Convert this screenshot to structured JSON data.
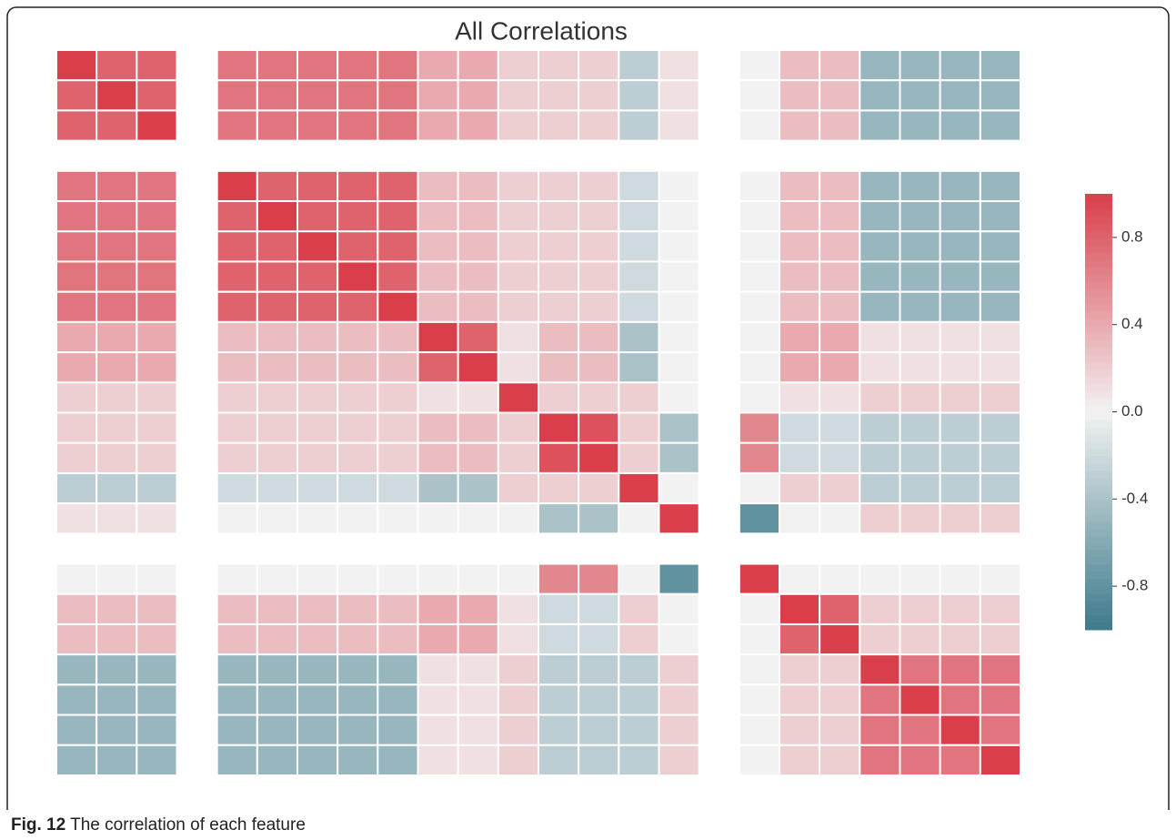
{
  "chart_data": {
    "type": "heatmap",
    "title": "All Correlations",
    "categories": [
      null,
      null,
      null,
      null,
      null,
      null,
      null,
      null,
      null,
      null,
      null,
      null,
      null,
      null,
      null,
      null,
      null,
      null,
      null,
      null,
      null,
      null,
      null,
      null
    ],
    "values": [
      [
        1,
        0.8,
        0.8,
        null,
        0.7,
        0.7,
        0.7,
        0.7,
        0.7,
        0.4,
        0.4,
        0.2,
        0.2,
        0.2,
        -0.3,
        0.1,
        null,
        0,
        0.3,
        0.3,
        -0.5,
        -0.5,
        -0.5,
        -0.5
      ],
      [
        0.8,
        1,
        0.8,
        null,
        0.7,
        0.7,
        0.7,
        0.7,
        0.7,
        0.4,
        0.4,
        0.2,
        0.2,
        0.2,
        -0.3,
        0.1,
        null,
        0,
        0.3,
        0.3,
        -0.5,
        -0.5,
        -0.5,
        -0.5
      ],
      [
        0.8,
        0.8,
        1,
        null,
        0.7,
        0.7,
        0.7,
        0.7,
        0.7,
        0.4,
        0.4,
        0.2,
        0.2,
        0.2,
        -0.3,
        0.1,
        null,
        0,
        0.3,
        0.3,
        -0.5,
        -0.5,
        -0.5,
        -0.5
      ],
      [
        null,
        null,
        null,
        null,
        null,
        null,
        null,
        null,
        null,
        null,
        null,
        null,
        null,
        null,
        null,
        null,
        null,
        null,
        null,
        null,
        null,
        null,
        null,
        null
      ],
      [
        0.7,
        0.7,
        0.7,
        null,
        1,
        0.8,
        0.8,
        0.8,
        0.8,
        0.3,
        0.3,
        0.2,
        0.2,
        0.2,
        -0.2,
        0,
        null,
        0,
        0.3,
        0.3,
        -0.5,
        -0.5,
        -0.5,
        -0.5
      ],
      [
        0.7,
        0.7,
        0.7,
        null,
        0.8,
        1,
        0.8,
        0.8,
        0.8,
        0.3,
        0.3,
        0.2,
        0.2,
        0.2,
        -0.2,
        0,
        null,
        0,
        0.3,
        0.3,
        -0.5,
        -0.5,
        -0.5,
        -0.5
      ],
      [
        0.7,
        0.7,
        0.7,
        null,
        0.8,
        0.8,
        1,
        0.8,
        0.8,
        0.3,
        0.3,
        0.2,
        0.2,
        0.2,
        -0.2,
        0,
        null,
        0,
        0.3,
        0.3,
        -0.5,
        -0.5,
        -0.5,
        -0.5
      ],
      [
        0.7,
        0.7,
        0.7,
        null,
        0.8,
        0.8,
        0.8,
        1,
        0.8,
        0.3,
        0.3,
        0.2,
        0.2,
        0.2,
        -0.2,
        0,
        null,
        0,
        0.3,
        0.3,
        -0.5,
        -0.5,
        -0.5,
        -0.5
      ],
      [
        0.7,
        0.7,
        0.7,
        null,
        0.8,
        0.8,
        0.8,
        0.8,
        1,
        0.3,
        0.3,
        0.2,
        0.2,
        0.2,
        -0.2,
        0,
        null,
        0,
        0.3,
        0.3,
        -0.5,
        -0.5,
        -0.5,
        -0.5
      ],
      [
        0.4,
        0.4,
        0.4,
        null,
        0.3,
        0.3,
        0.3,
        0.3,
        0.3,
        1,
        0.8,
        0.1,
        0.3,
        0.3,
        -0.4,
        0,
        null,
        0,
        0.4,
        0.4,
        0.1,
        0.1,
        0.1,
        0.1
      ],
      [
        0.4,
        0.4,
        0.4,
        null,
        0.3,
        0.3,
        0.3,
        0.3,
        0.3,
        0.8,
        1,
        0.1,
        0.3,
        0.3,
        -0.4,
        0,
        null,
        0,
        0.4,
        0.4,
        0.1,
        0.1,
        0.1,
        0.1
      ],
      [
        0.2,
        0.2,
        0.2,
        null,
        0.2,
        0.2,
        0.2,
        0.2,
        0.2,
        0.1,
        0.1,
        1,
        0.2,
        0.2,
        0.2,
        0,
        null,
        0,
        0.1,
        0.1,
        0.2,
        0.2,
        0.2,
        0.2
      ],
      [
        0.2,
        0.2,
        0.2,
        null,
        0.2,
        0.2,
        0.2,
        0.2,
        0.2,
        0.3,
        0.3,
        0.2,
        1,
        0.9,
        0.2,
        -0.4,
        null,
        0.6,
        -0.2,
        -0.2,
        -0.3,
        -0.3,
        -0.3,
        -0.3
      ],
      [
        0.2,
        0.2,
        0.2,
        null,
        0.2,
        0.2,
        0.2,
        0.2,
        0.2,
        0.3,
        0.3,
        0.2,
        0.9,
        1,
        0.2,
        -0.4,
        null,
        0.6,
        -0.2,
        -0.2,
        -0.3,
        -0.3,
        -0.3,
        -0.3
      ],
      [
        -0.3,
        -0.3,
        -0.3,
        null,
        -0.2,
        -0.2,
        -0.2,
        -0.2,
        -0.2,
        -0.4,
        -0.4,
        0.2,
        0.2,
        0.2,
        1,
        0,
        null,
        0,
        0.2,
        0.2,
        -0.3,
        -0.3,
        -0.3,
        -0.3
      ],
      [
        0.1,
        0.1,
        0.1,
        null,
        0,
        0,
        0,
        0,
        0,
        0,
        0,
        0,
        -0.4,
        -0.4,
        0,
        1,
        null,
        -0.8,
        0,
        0,
        0.2,
        0.2,
        0.2,
        0.2
      ],
      [
        null,
        null,
        null,
        null,
        null,
        null,
        null,
        null,
        null,
        null,
        null,
        null,
        null,
        null,
        null,
        null,
        null,
        null,
        null,
        null,
        null,
        null,
        null,
        null
      ],
      [
        0,
        0,
        0,
        null,
        0,
        0,
        0,
        0,
        0,
        0,
        0,
        0,
        0.6,
        0.6,
        0,
        -0.8,
        null,
        1,
        0,
        0,
        0,
        0,
        0,
        0
      ],
      [
        0.3,
        0.3,
        0.3,
        null,
        0.3,
        0.3,
        0.3,
        0.3,
        0.3,
        0.4,
        0.4,
        0.1,
        -0.2,
        -0.2,
        0.2,
        0,
        null,
        0,
        1,
        0.8,
        0.2,
        0.2,
        0.2,
        0.2
      ],
      [
        0.3,
        0.3,
        0.3,
        null,
        0.3,
        0.3,
        0.3,
        0.3,
        0.3,
        0.4,
        0.4,
        0.1,
        -0.2,
        -0.2,
        0.2,
        0,
        null,
        0,
        0.8,
        1,
        0.2,
        0.2,
        0.2,
        0.2
      ],
      [
        -0.5,
        -0.5,
        -0.5,
        null,
        -0.5,
        -0.5,
        -0.5,
        -0.5,
        -0.5,
        0.1,
        0.1,
        0.2,
        -0.3,
        -0.3,
        -0.3,
        0.2,
        null,
        0,
        0.2,
        0.2,
        1,
        0.7,
        0.7,
        0.7
      ],
      [
        -0.5,
        -0.5,
        -0.5,
        null,
        -0.5,
        -0.5,
        -0.5,
        -0.5,
        -0.5,
        0.1,
        0.1,
        0.2,
        -0.3,
        -0.3,
        -0.3,
        0.2,
        null,
        0,
        0.2,
        0.2,
        0.7,
        1,
        0.7,
        0.7
      ],
      [
        -0.5,
        -0.5,
        -0.5,
        null,
        -0.5,
        -0.5,
        -0.5,
        -0.5,
        -0.5,
        0.1,
        0.1,
        0.2,
        -0.3,
        -0.3,
        -0.3,
        0.2,
        null,
        0,
        0.2,
        0.2,
        0.7,
        0.7,
        1,
        0.7
      ],
      [
        -0.5,
        -0.5,
        -0.5,
        null,
        -0.5,
        -0.5,
        -0.5,
        -0.5,
        -0.5,
        0.1,
        0.1,
        0.2,
        -0.3,
        -0.3,
        -0.3,
        0.2,
        null,
        0,
        0.2,
        0.2,
        0.7,
        0.7,
        0.7,
        1
      ]
    ],
    "zlim": [
      -1,
      1
    ],
    "zticks": [
      0.8,
      0.4,
      {
        "value": 0,
        "label": "0.0"
      },
      -0.4,
      -0.8
    ],
    "colors": [
      "#3d7a8a",
      "#f2f2f2",
      "#d93f4b"
    ]
  },
  "caption": {
    "label": "Fig. 12",
    "text": "The correlation of each feature"
  }
}
